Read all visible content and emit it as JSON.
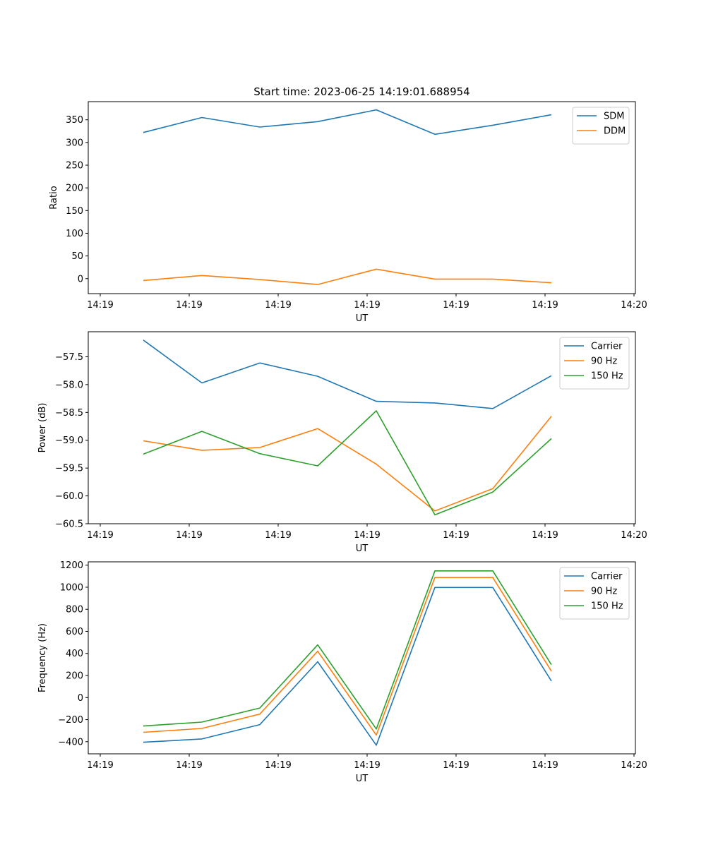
{
  "figure_title": "Start time: 2023-06-25 14:19:01.688954",
  "colors": {
    "blue": "#1f77b4",
    "orange": "#ff7f0e",
    "green": "#2ca02c"
  },
  "chart_data": [
    {
      "type": "line",
      "title": "Start time: 2023-06-25 14:19:01.688954",
      "xlabel": "UT",
      "ylabel": "Ratio",
      "ylim": [
        -33,
        390
      ],
      "yticks": [
        0,
        50,
        100,
        150,
        200,
        250,
        300,
        350
      ],
      "xticks": [
        "14:19",
        "14:19",
        "14:19",
        "14:19",
        "14:19",
        "14:19",
        "14:19",
        "14:20"
      ],
      "legend": "top-right",
      "grid": false,
      "series": [
        {
          "name": "SDM",
          "color": "#1f77b4",
          "values": [
            322,
            355,
            334,
            346,
            372,
            318,
            338,
            361
          ]
        },
        {
          "name": "DDM",
          "color": "#ff7f0e",
          "values": [
            -4,
            7,
            -2,
            -13,
            21,
            -1,
            -1,
            -9
          ]
        }
      ]
    },
    {
      "type": "line",
      "xlabel": "UT",
      "ylabel": "Power (dB)",
      "ylim": [
        -60.5,
        -57.05
      ],
      "yticks": [
        -60.5,
        -60.0,
        -59.5,
        -59.0,
        -58.5,
        -58.0,
        -57.5
      ],
      "xticks": [
        "14:19",
        "14:19",
        "14:19",
        "14:19",
        "14:19",
        "14:19",
        "14:19",
        "14:20"
      ],
      "legend": "top-right",
      "grid": false,
      "series": [
        {
          "name": "Carrier",
          "color": "#1f77b4",
          "values": [
            -57.2,
            -57.97,
            -57.61,
            -57.85,
            -58.3,
            -58.33,
            -58.43,
            -57.84
          ]
        },
        {
          "name": "90 Hz",
          "color": "#ff7f0e",
          "values": [
            -59.01,
            -59.18,
            -59.13,
            -58.79,
            -59.43,
            -60.27,
            -59.87,
            -58.57
          ]
        },
        {
          "name": "150 Hz",
          "color": "#2ca02c",
          "values": [
            -59.25,
            -58.84,
            -59.24,
            -59.46,
            -58.47,
            -60.34,
            -59.93,
            -58.97
          ]
        }
      ]
    },
    {
      "type": "line",
      "xlabel": "UT",
      "ylabel": "Frequency (Hz)",
      "ylim": [
        -510,
        1230
      ],
      "yticks": [
        -400,
        -200,
        0,
        200,
        400,
        600,
        800,
        1000,
        1200
      ],
      "xticks": [
        "14:19",
        "14:19",
        "14:19",
        "14:19",
        "14:19",
        "14:19",
        "14:19",
        "14:20"
      ],
      "legend": "top-right",
      "grid": false,
      "series": [
        {
          "name": "Carrier",
          "color": "#1f77b4",
          "values": [
            -405,
            -375,
            -245,
            325,
            -432,
            998,
            998,
            150
          ]
        },
        {
          "name": "90 Hz",
          "color": "#ff7f0e",
          "values": [
            -315,
            -280,
            -150,
            420,
            -340,
            1088,
            1088,
            240
          ]
        },
        {
          "name": "150 Hz",
          "color": "#2ca02c",
          "values": [
            -258,
            -222,
            -95,
            478,
            -285,
            1148,
            1148,
            298
          ]
        }
      ]
    }
  ]
}
